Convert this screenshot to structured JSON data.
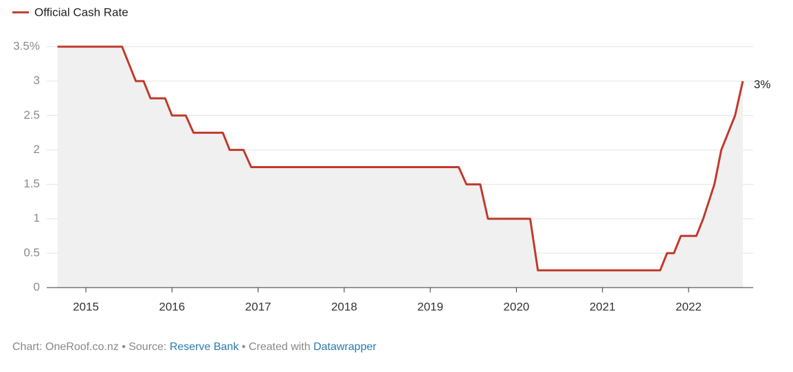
{
  "chart_data": {
    "type": "line",
    "series": [
      {
        "name": "Official Cash Rate",
        "color": "#c0392b",
        "x": [
          2014.67,
          2015.42,
          2015.58,
          2015.67,
          2015.75,
          2015.92,
          2016.0,
          2016.16,
          2016.25,
          2016.59,
          2016.67,
          2016.83,
          2016.92,
          2019.33,
          2019.42,
          2019.58,
          2019.67,
          2020.16,
          2020.25,
          2021.67,
          2021.75,
          2021.83,
          2021.91,
          2022.09,
          2022.17,
          2022.3,
          2022.38,
          2022.54,
          2022.63
        ],
        "values": [
          3.5,
          3.5,
          3.0,
          3.0,
          2.75,
          2.75,
          2.5,
          2.5,
          2.25,
          2.25,
          2.0,
          2.0,
          1.75,
          1.75,
          1.5,
          1.5,
          1.0,
          1.0,
          0.25,
          0.25,
          0.5,
          0.5,
          0.75,
          0.75,
          1.0,
          1.5,
          2.0,
          2.5,
          3.0
        ],
        "value_labels": [
          null,
          null,
          null,
          null,
          null,
          null,
          null,
          null,
          null,
          null,
          null,
          null,
          null,
          null,
          null,
          null,
          null,
          null,
          null,
          null,
          null,
          null,
          null,
          null,
          null,
          null,
          null,
          null,
          "3%"
        ]
      }
    ],
    "xlim": [
      2014.545,
      2022.75
    ],
    "xticks": [
      2015,
      2016,
      2017,
      2018,
      2019,
      2020,
      2021,
      2022
    ],
    "ylim": [
      0,
      3.5
    ],
    "yticks": [
      0,
      0.5,
      1,
      1.5,
      2,
      2.5,
      3,
      {
        "value": 3.5,
        "label": "3.5%"
      }
    ],
    "grid": true,
    "area_color": "#f0f0f0",
    "footer": [
      {
        "text": "Chart: OneRoof.co.nz • Source: "
      },
      {
        "text": "Reserve Bank",
        "link": true
      },
      {
        "text": " • Created with "
      },
      {
        "text": "Datawrapper",
        "link": true
      }
    ]
  }
}
